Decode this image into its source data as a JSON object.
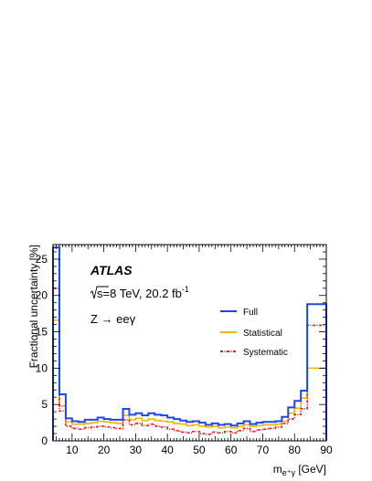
{
  "chart_data": {
    "type": "line",
    "title": "",
    "experiment_label": "ATLAS",
    "energy_label": {
      "prefix": "s=8 TeV, 20.2 fb",
      "sup": "-1"
    },
    "process_label": "Z → eeγ",
    "xlabel": {
      "main": "m",
      "sub": "e⁺γ",
      "unit": " [GeV]"
    },
    "ylabel": "Fractional uncertainty [%]",
    "xlim": [
      4,
      90
    ],
    "ylim": [
      0,
      27
    ],
    "xticks": [
      10,
      20,
      30,
      40,
      50,
      60,
      70,
      80,
      90
    ],
    "yticks": [
      0,
      5,
      10,
      15,
      20,
      25
    ],
    "legend_position": "right",
    "bin_edges": [
      4,
      6,
      8,
      10,
      12,
      14,
      16,
      18,
      20,
      22,
      24,
      26,
      28,
      30,
      32,
      34,
      36,
      38,
      40,
      42,
      44,
      46,
      48,
      50,
      52,
      54,
      56,
      58,
      60,
      62,
      64,
      66,
      68,
      70,
      72,
      74,
      76,
      78,
      80,
      82,
      84,
      90
    ],
    "series": [
      {
        "name": "Full",
        "color": "#1f46e6",
        "style": "solid",
        "values": [
          26.6,
          6.4,
          3.1,
          2.7,
          2.6,
          2.9,
          2.9,
          3.2,
          3.0,
          2.9,
          2.9,
          4.4,
          3.6,
          3.8,
          3.5,
          3.8,
          3.6,
          3.5,
          3.2,
          3.0,
          2.8,
          2.6,
          2.7,
          2.5,
          2.2,
          2.4,
          2.2,
          2.3,
          2.1,
          2.4,
          2.7,
          2.3,
          2.5,
          2.6,
          2.6,
          2.7,
          3.3,
          4.6,
          5.5,
          6.9,
          18.8
        ]
      },
      {
        "name": "Statistical",
        "color": "#f2b400",
        "style": "solid",
        "values": [
          16.6,
          4.8,
          2.6,
          2.3,
          2.3,
          2.4,
          2.5,
          2.7,
          2.6,
          2.5,
          2.4,
          3.5,
          2.9,
          3.1,
          2.8,
          3.0,
          2.8,
          2.7,
          2.6,
          2.4,
          2.3,
          2.1,
          2.2,
          2.0,
          1.9,
          2.0,
          1.8,
          1.9,
          1.8,
          2.0,
          2.2,
          2.0,
          2.1,
          2.2,
          2.2,
          2.3,
          2.7,
          3.8,
          4.5,
          5.9,
          10.0
        ]
      },
      {
        "name": "Systematic",
        "color": "#e8141c",
        "style": "dashdot",
        "values": [
          21.0,
          4.1,
          2.0,
          1.7,
          1.6,
          1.8,
          1.9,
          2.0,
          1.9,
          1.8,
          1.7,
          2.9,
          2.2,
          2.4,
          2.1,
          2.3,
          2.0,
          1.9,
          1.6,
          1.4,
          1.2,
          1.1,
          1.3,
          1.0,
          0.9,
          1.2,
          1.1,
          1.3,
          1.1,
          1.4,
          1.7,
          1.3,
          1.5,
          1.6,
          1.7,
          1.9,
          2.4,
          3.0,
          3.6,
          4.4,
          15.9
        ]
      }
    ]
  }
}
